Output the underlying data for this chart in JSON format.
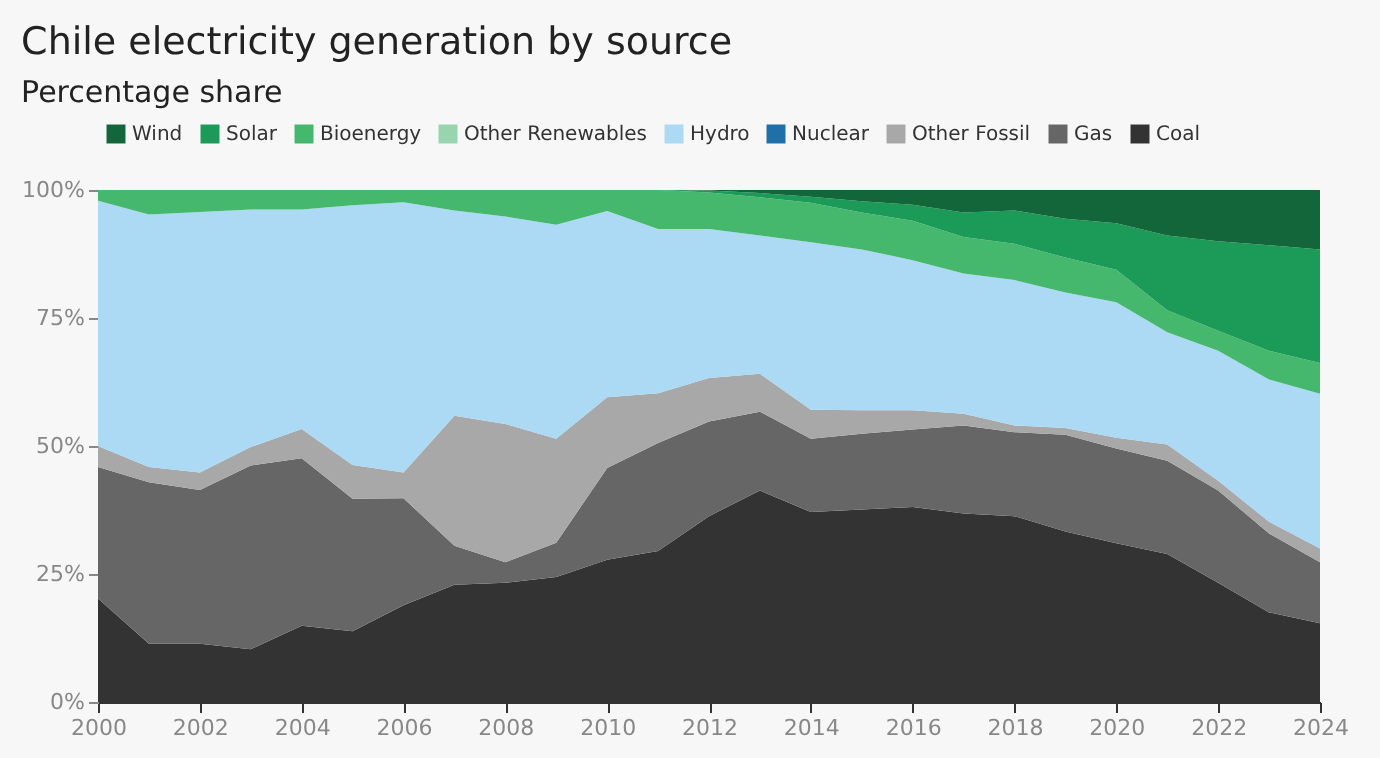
{
  "chart_data": {
    "type": "area",
    "title": "Chile electricity generation by source",
    "subtitle": "Percentage share",
    "stacked": true,
    "legend": "top",
    "grid": false,
    "x": [
      2000,
      2001,
      2002,
      2003,
      2004,
      2005,
      2006,
      2007,
      2008,
      2009,
      2010,
      2011,
      2012,
      2013,
      2014,
      2015,
      2016,
      2017,
      2018,
      2019,
      2020,
      2021,
      2022,
      2023,
      2024
    ],
    "xlim": [
      2000,
      2024
    ],
    "xticks": [
      2000,
      2002,
      2004,
      2006,
      2008,
      2010,
      2012,
      2014,
      2016,
      2018,
      2020,
      2022,
      2024
    ],
    "ylim": [
      0,
      100
    ],
    "yticks": [
      {
        "value": 0,
        "label": "0%"
      },
      {
        "value": 25,
        "label": "25%"
      },
      {
        "value": 50,
        "label": "50%"
      },
      {
        "value": 75,
        "label": "75%"
      },
      {
        "value": 100,
        "label": "100%"
      }
    ],
    "series": [
      {
        "name": "Coal",
        "color": "#333333",
        "values": [
          20.2,
          11.4,
          11.4,
          10.3,
          14.9,
          13.8,
          18.9,
          22.9,
          23.3,
          24.4,
          27.8,
          29.5,
          36.3,
          41.3,
          37.1,
          37.6,
          38.1,
          36.8,
          36.3,
          33.3,
          31.0,
          28.9,
          23.3,
          17.5,
          15.4
        ]
      },
      {
        "name": "Gas",
        "color": "#666666",
        "values": [
          25.7,
          31.5,
          30.0,
          35.9,
          32.7,
          25.9,
          20.9,
          7.6,
          4.0,
          6.7,
          17.9,
          21.1,
          18.5,
          15.4,
          14.3,
          14.8,
          15.1,
          17.2,
          16.4,
          18.9,
          18.5,
          18.2,
          18.0,
          15.4,
          11.9
        ]
      },
      {
        "name": "Other Fossil",
        "color": "#a8a8a8",
        "values": [
          4.1,
          3.0,
          3.4,
          3.6,
          5.7,
          6.6,
          5.0,
          25.4,
          27.0,
          20.3,
          13.8,
          9.7,
          8.5,
          7.4,
          5.7,
          4.6,
          3.8,
          2.3,
          1.3,
          1.3,
          2.1,
          3.2,
          1.9,
          2.3,
          2.7
        ]
      },
      {
        "name": "Nuclear",
        "color": "#1f6fa8",
        "values": [
          null,
          null,
          null,
          null,
          null,
          null,
          null,
          null,
          null,
          null,
          null,
          null,
          null,
          null,
          null,
          null,
          null,
          null,
          null,
          null,
          null,
          null,
          null,
          null,
          null
        ]
      },
      {
        "name": "Hydro",
        "color": "#acd9f4",
        "values": [
          47.9,
          49.3,
          50.9,
          46.4,
          42.9,
          50.7,
          52.8,
          40.1,
          40.5,
          41.8,
          36.4,
          32.1,
          29.1,
          27.0,
          32.7,
          31.4,
          29.3,
          27.4,
          28.4,
          26.5,
          26.5,
          21.9,
          25.4,
          27.8,
          30.2
        ]
      },
      {
        "name": "Other Renewables",
        "color": "#98d4ad",
        "values": [
          null,
          null,
          null,
          null,
          null,
          null,
          null,
          null,
          null,
          null,
          null,
          null,
          null,
          null,
          null,
          null,
          null,
          null,
          null,
          null,
          null,
          null,
          null,
          null,
          null
        ]
      },
      {
        "name": "Bioenergy",
        "color": "#46b86e",
        "values": [
          2.1,
          4.8,
          4.3,
          3.8,
          3.8,
          3.0,
          2.4,
          4.0,
          5.2,
          6.8,
          4.1,
          7.6,
          7.1,
          7.5,
          7.7,
          7.2,
          7.7,
          7.1,
          7.1,
          6.8,
          6.3,
          4.3,
          3.9,
          5.6,
          6.0
        ]
      },
      {
        "name": "Solar",
        "color": "#1c9a57",
        "values": [
          0,
          0,
          0,
          0,
          0,
          0,
          0,
          0,
          0,
          0,
          0,
          0,
          0.4,
          0.8,
          1.2,
          2.2,
          3.1,
          4.8,
          6.5,
          7.6,
          9.1,
          14.6,
          17.5,
          20.6,
          22.2
        ]
      },
      {
        "name": "Wind",
        "color": "#13653a",
        "values": [
          0,
          0,
          0,
          0,
          0,
          0,
          0,
          0,
          0,
          0,
          0,
          0,
          0.1,
          0.6,
          1.3,
          2.2,
          2.9,
          4.4,
          4.0,
          5.6,
          6.5,
          8.9,
          10.0,
          10.8,
          11.6
        ]
      }
    ]
  }
}
